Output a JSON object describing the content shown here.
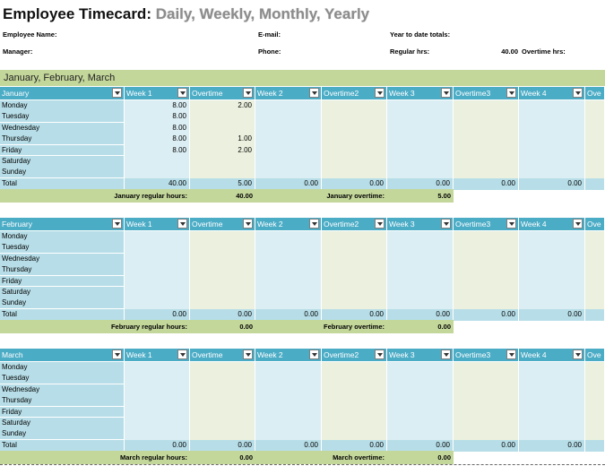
{
  "header": {
    "title": "Employee Timecard:",
    "subtitle": "Daily, Weekly, Monthly, Yearly",
    "employee_name_label": "Employee Name:",
    "email_label": "E-mail:",
    "ytd_label": "Year to date totals:",
    "manager_label": "Manager:",
    "phone_label": "Phone:",
    "regular_hrs_label": "Regular hrs:",
    "regular_hrs_value": "40.00",
    "overtime_hrs_label": "Overtime hrs:"
  },
  "section_title": "January, February, March",
  "tables": [
    {
      "columns": [
        "January",
        "Week 1",
        "Overtime",
        "Week 2",
        "Overtime2",
        "Week 3",
        "Overtime3",
        "Week 4",
        "Ove"
      ],
      "rows": [
        [
          "Monday",
          "8.00",
          "2.00",
          null,
          null,
          null,
          null,
          null,
          null
        ],
        [
          "Tuesday",
          "8.00",
          null,
          null,
          null,
          null,
          null,
          null,
          null
        ],
        [
          "Wednesday",
          "8.00",
          null,
          null,
          null,
          null,
          null,
          null,
          null
        ],
        [
          "Thursday",
          "8.00",
          "1.00",
          null,
          null,
          null,
          null,
          null,
          null
        ],
        [
          "Friday",
          "8.00",
          "2.00",
          null,
          null,
          null,
          null,
          null,
          null
        ],
        [
          "Saturday",
          null,
          null,
          null,
          null,
          null,
          null,
          null,
          null
        ],
        [
          "Sunday",
          null,
          null,
          null,
          null,
          null,
          null,
          null,
          null
        ],
        [
          "Total",
          "40.00",
          "5.00",
          "0.00",
          "0.00",
          "0.00",
          "0.00",
          "0.00",
          null
        ]
      ],
      "summary": {
        "regular_label": "January regular hours:",
        "regular_value": "40.00",
        "overtime_label": "January overtime:",
        "overtime_value": "5.00"
      }
    },
    {
      "columns": [
        "February",
        "Week 1",
        "Overtime",
        "Week 2",
        "Overtime2",
        "Week 3",
        "Overtime3",
        "Week 4",
        "Ove"
      ],
      "rows": [
        [
          "Monday",
          null,
          null,
          null,
          null,
          null,
          null,
          null,
          null
        ],
        [
          "Tuesday",
          null,
          null,
          null,
          null,
          null,
          null,
          null,
          null
        ],
        [
          "Wednesday",
          null,
          null,
          null,
          null,
          null,
          null,
          null,
          null
        ],
        [
          "Thursday",
          null,
          null,
          null,
          null,
          null,
          null,
          null,
          null
        ],
        [
          "Friday",
          null,
          null,
          null,
          null,
          null,
          null,
          null,
          null
        ],
        [
          "Saturday",
          null,
          null,
          null,
          null,
          null,
          null,
          null,
          null
        ],
        [
          "Sunday",
          null,
          null,
          null,
          null,
          null,
          null,
          null,
          null
        ],
        [
          "Total",
          "0.00",
          "0.00",
          "0.00",
          "0.00",
          "0.00",
          "0.00",
          "0.00",
          null
        ]
      ],
      "summary": {
        "regular_label": "February regular hours:",
        "regular_value": "0.00",
        "overtime_label": "February overtime:",
        "overtime_value": "0.00"
      }
    },
    {
      "columns": [
        "March",
        "Week 1",
        "Overtime",
        "Week 2",
        "Overtime2",
        "Week 3",
        "Overtime3",
        "Week 4",
        "Ove"
      ],
      "rows": [
        [
          "Monday",
          null,
          null,
          null,
          null,
          null,
          null,
          null,
          null
        ],
        [
          "Tuesday",
          null,
          null,
          null,
          null,
          null,
          null,
          null,
          null
        ],
        [
          "Wednesday",
          null,
          null,
          null,
          null,
          null,
          null,
          null,
          null
        ],
        [
          "Thursday",
          null,
          null,
          null,
          null,
          null,
          null,
          null,
          null
        ],
        [
          "Friday",
          null,
          null,
          null,
          null,
          null,
          null,
          null,
          null
        ],
        [
          "Saturday",
          null,
          null,
          null,
          null,
          null,
          null,
          null,
          null
        ],
        [
          "Sunday",
          null,
          null,
          null,
          null,
          null,
          null,
          null,
          null
        ],
        [
          "Total",
          "0.00",
          "0.00",
          "0.00",
          "0.00",
          "0.00",
          "0.00",
          "0.00",
          null
        ]
      ],
      "summary": {
        "regular_label": "March regular hours:",
        "regular_value": "0.00",
        "overtime_label": "March overtime:",
        "overtime_value": "0.00"
      }
    }
  ]
}
